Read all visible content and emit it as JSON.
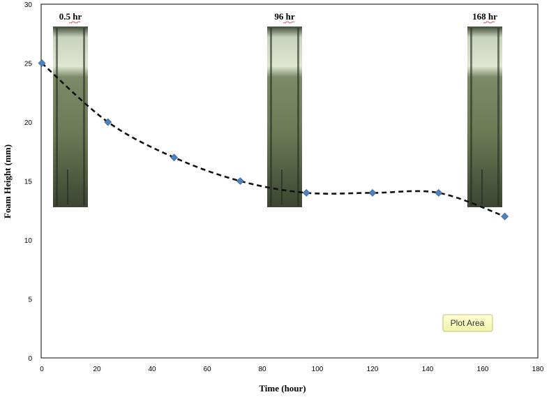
{
  "chart_data": {
    "type": "scatter",
    "xlabel": "Time (hour)",
    "ylabel": "Foam Height  (mm)",
    "xlim": [
      0,
      180
    ],
    "ylim": [
      0,
      30
    ],
    "xticks": [
      0,
      20,
      40,
      60,
      80,
      100,
      120,
      140,
      160,
      180
    ],
    "yticks": [
      0,
      5,
      10,
      15,
      20,
      25,
      30
    ],
    "grid": false,
    "trendline": "dashed smooth curve",
    "series": [
      {
        "x": [
          0,
          24,
          48,
          72,
          96,
          120,
          144,
          168
        ],
        "y": [
          25,
          20,
          17,
          15,
          14,
          14,
          14,
          12
        ],
        "marker": "diamond",
        "color": "#4F81BD"
      }
    ],
    "annotations": [
      {
        "label": "0.5 hr",
        "x": 0.5
      },
      {
        "label": "96 hr",
        "x": 96
      },
      {
        "label": "168 hr",
        "x": 168
      }
    ],
    "tooltip": "Plot Area"
  }
}
